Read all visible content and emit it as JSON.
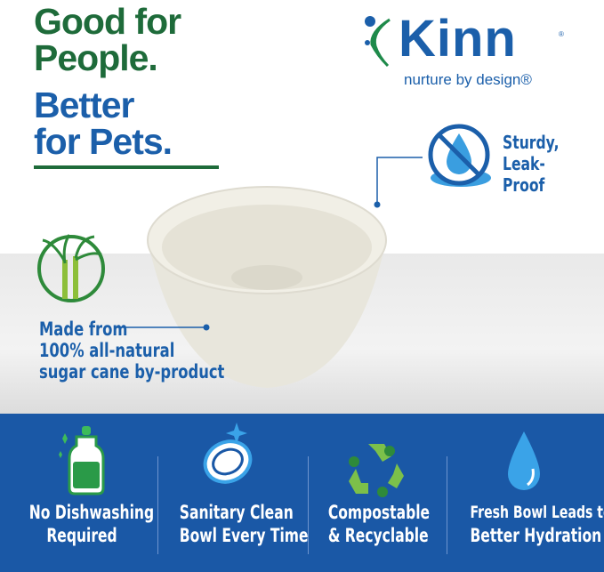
{
  "headline": {
    "line1": "Good for",
    "line2": "People.",
    "line3": "Better",
    "line4": "for Pets."
  },
  "logo": {
    "brand": "Kinn",
    "registered": "®",
    "tagline": "nurture by design®"
  },
  "callouts": {
    "leak_proof": {
      "line1": "Sturdy,",
      "line2": "Leak-Proof",
      "icon": "no-drip-icon"
    },
    "sugar_cane": {
      "line1": "Made from",
      "line2": "100% all-natural",
      "line3": "sugar cane by-product",
      "icon": "sugar-cane-icon"
    }
  },
  "features": [
    {
      "line1": "No Dishwashing",
      "line2": "Required",
      "icon": "dish-soap-bottle-icon"
    },
    {
      "line1": "Sanitary Clean",
      "line2": "Bowl Every Time",
      "icon": "sparkling-bowl-icon"
    },
    {
      "line1": "Compostable",
      "line2": "& Recyclable",
      "icon": "recycle-icon"
    },
    {
      "line1": "Fresh Bowl Leads to",
      "line2": "Better Hydration",
      "icon": "water-drop-icon"
    }
  ],
  "colors": {
    "green": "#1e6b3a",
    "blue": "#1b5faa",
    "band": "#1a58a6"
  }
}
